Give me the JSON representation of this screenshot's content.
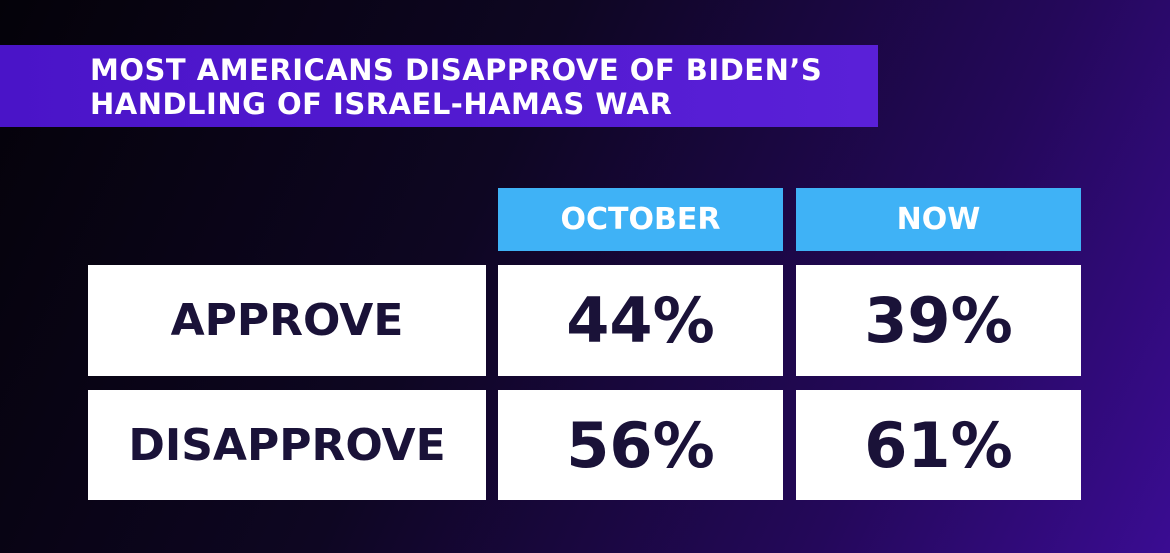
{
  "title_lines": [
    "MOST AMERICANS DISAPPROVE OF BIDEN’S",
    "HANDLING OF ISRAEL-HAMAS WAR"
  ],
  "table": {
    "columns": [
      "OCTOBER",
      "NOW"
    ],
    "rows": [
      [
        "APPROVE",
        "44%",
        "39%"
      ],
      [
        "DISAPPROVE",
        "56%",
        "61%"
      ]
    ]
  }
}
